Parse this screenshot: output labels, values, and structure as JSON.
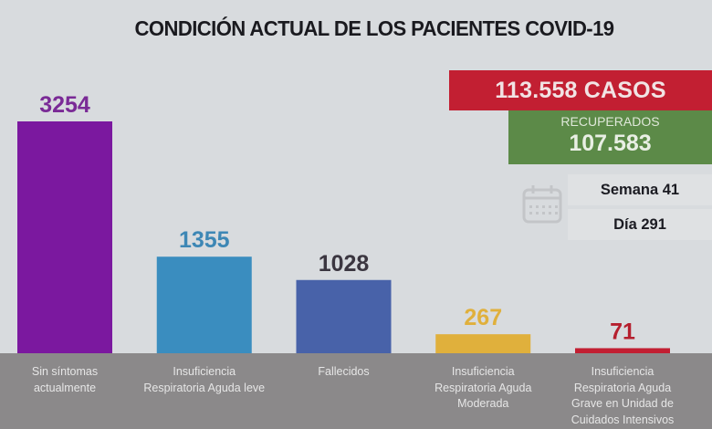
{
  "title": "CONDICIÓN ACTUAL DE LOS PACIENTES COVID-19",
  "summary": {
    "cases_label": "113.558 CASOS",
    "recovered_label": "RECUPERADOS",
    "recovered_value": "107.583",
    "week_label": "Semana 41",
    "day_label": "Día 291",
    "calendar_icon": "calendar-icon"
  },
  "colors": {
    "background": "#d8dbde",
    "bottom_band": "#8b898a",
    "cases_box": "#c21f32",
    "recovered_box": "#5c8a48"
  },
  "chart_data": {
    "type": "bar",
    "title": "CONDICIÓN ACTUAL DE LOS PACIENTES COVID-19",
    "xlabel": "",
    "ylabel": "",
    "ylim": [
      0,
      3254
    ],
    "grid": false,
    "categories": [
      "Sin síntomas actualmente",
      "Insuficiencia Respiratoria Aguda leve",
      "Fallecidos",
      "Insuficiencia Respiratoria Aguda Moderada",
      "Insuficiencia Respiratoria Aguda Grave en Unidad de Cuidados Intensivos"
    ],
    "category_lines": [
      [
        "Sin síntomas",
        "actualmente"
      ],
      [
        "Insuficiencia",
        "Respiratoria Aguda leve"
      ],
      [
        "Fallecidos"
      ],
      [
        "Insuficiencia",
        "Respiratoria Aguda",
        "Moderada"
      ],
      [
        "Insuficiencia",
        "Respiratoria Aguda",
        "Grave en Unidad de",
        "Cuidados Intensivos"
      ]
    ],
    "values": [
      3254,
      1355,
      1028,
      267,
      71
    ],
    "data_labels": [
      "3254",
      "1355",
      "1028",
      "267",
      "71"
    ],
    "bar_colors": [
      "#7b189f",
      "#3a8dbf",
      "#4862a9",
      "#e0b03c",
      "#c21f32"
    ],
    "label_colors": [
      "#7a2a96",
      "#3d87b5",
      "#3b3640",
      "#e0b03c",
      "#b51f2e"
    ]
  }
}
